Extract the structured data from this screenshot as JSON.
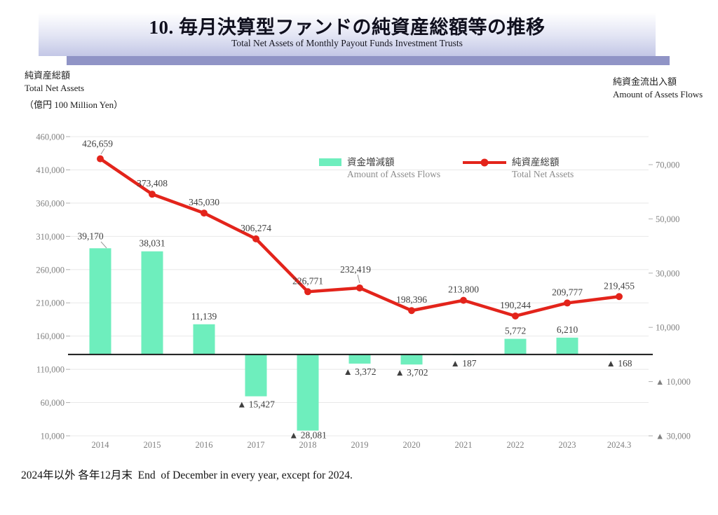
{
  "banner": {
    "title": "10. 毎月決算型ファンドの純資産総額等の推移",
    "subtitle": "Total Net Assets of Monthly Payout Funds Investment Trusts"
  },
  "left_axis_header": {
    "line1": "純資産総額",
    "line2": "Total Net Assets",
    "line3": "（億円 100 Million Yen）"
  },
  "right_axis_header": {
    "line1": "純資金流出入額",
    "line2": "Amount of Assets Flows"
  },
  "legend": {
    "bar": {
      "ja": "資金増減額",
      "en": "Amount of Assets Flows"
    },
    "line": {
      "ja": "純資産総額",
      "en": "Total Net Assets"
    }
  },
  "footer": {
    "note": "2024年以外 各年12月末  End  of December in every year, except for 2024."
  },
  "colors": {
    "bar": "#6eeebd",
    "line": "#e3241b",
    "grid": "#e8e8e8",
    "zero_line": "#1a1a1a",
    "tick": "#b0b0b0",
    "tick_label": "#808080",
    "data_label": "#3f3f3f",
    "leader": "#9a9a9a"
  },
  "chart_data": {
    "type": "combo",
    "title": "毎月決算型ファンドの純資産総額等の推移",
    "categories": [
      "2014",
      "2015",
      "2016",
      "2017",
      "2018",
      "2019",
      "2020",
      "2021",
      "2022",
      "2023",
      "2024.3"
    ],
    "series": [
      {
        "name": "資金増減額",
        "name_en": "Amount of Assets Flows",
        "type": "bar",
        "axis": "right",
        "values": [
          39170,
          38031,
          11139,
          -15427,
          -28081,
          -3372,
          -3702,
          -187,
          5772,
          6210,
          -168
        ]
      },
      {
        "name": "純資産総額",
        "name_en": "Total Net Assets",
        "type": "line",
        "axis": "left",
        "values": [
          426659,
          373408,
          345030,
          306274,
          226771,
          232419,
          198396,
          213800,
          190244,
          209777,
          219455
        ]
      }
    ],
    "left_axis": {
      "title": "純資産総額 (億円 100 Million Yen)",
      "min": 10000,
      "max": 460000,
      "step": 50000,
      "ticks": [
        460000,
        410000,
        360000,
        310000,
        260000,
        210000,
        160000,
        110000,
        60000,
        10000
      ]
    },
    "right_axis": {
      "title": "純資金流出入額",
      "min": -30000,
      "max": 70000,
      "step": 20000,
      "ticks": [
        70000,
        50000,
        30000,
        10000,
        -10000,
        -30000
      ]
    },
    "negative_prefix": "▲ ",
    "grid": "horizontal-left-axis",
    "legend_position": "top-center",
    "x_note": "End of December in every year, except for 2024 (2024 = March)"
  }
}
